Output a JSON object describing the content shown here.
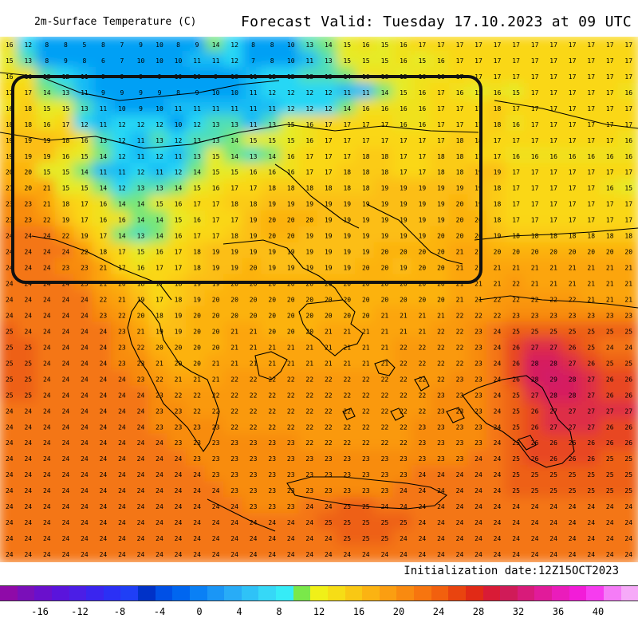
{
  "header": {
    "title_left": "2m-Surface Temperature (C)",
    "title_right": "Forecast Valid:  Tuesday 17.10.2023 at 09 UTC"
  },
  "footer": {
    "init_label": "Initialization date:12Z15OCT2023"
  },
  "colorbar": {
    "colors": [
      "#8f0aa8",
      "#7a0fb9",
      "#6a10cc",
      "#5a14dc",
      "#4b1ee6",
      "#3a25ef",
      "#2b30f5",
      "#1f3ff6",
      "#0032c8",
      "#0050e6",
      "#0066f0",
      "#0a80f5",
      "#1a96f6",
      "#28acf7",
      "#2fc2f7",
      "#36d8f7",
      "#36ecf7",
      "#7ae84a",
      "#f0f018",
      "#f6dd16",
      "#f9c814",
      "#fbb312",
      "#fb9e11",
      "#f98a10",
      "#f7750f",
      "#f2600e",
      "#e9440f",
      "#e12a16",
      "#d91b36",
      "#d01b58",
      "#d81b7a",
      "#e11b9a",
      "#ea1cbb",
      "#f21cd8",
      "#f63cef",
      "#f57cf7",
      "#f6aaf8"
    ],
    "tick_labels": [
      "-16",
      "-12",
      "-8",
      "-4",
      "0",
      "4",
      "8",
      "12",
      "16",
      "20",
      "24",
      "28",
      "32",
      "36",
      "40"
    ]
  },
  "grid_values": {
    "row_00": "16 12 8 8 5 8 7 9 10 8 9 14 12 8 8 10 13 14 15 16 15 16 17 17 17 17 17 17 17 17 17 17 17 17",
    "row_01": "15 13 8 9 8 6 7 10 10 10 11 11 12 7 8 10 11 13 15 15 15 16 15 16 17 17 17 17 17 17 17 17 17 17",
    "row_02": "16 16 13 12 11 9 9 9 9 10 10 9 10 11 12 12 13 13 14 16 16 15 16 16 17 17 17 17 17 17 17 17 17 17",
    "row_03": "17 17 14 13 11 9 9 9 9 8 9 10 10 11 12 12 12 12 11 11 14 15 16 17 16 15 16 15 17 17 17 17 17 16",
    "row_04": "16 18 15 15 13 11 10 9 10 11 11 11 11 11 11 12 12 12 14 16 16 16 16 17 17 17 18 17 17 17 17 17 17 17",
    "row_05": "18 18 16 17 12 11 12 12 12 10 12 13 13 11 13 15 16 17 17 17 17 16 16 17 17 17 18 16 17 17 17 17 17 17",
    "row_06": "19 19 19 18 16 13 12 11 13 12 13 13 14 15 15 15 16 17 17 17 17 17 17 17 18 18 17 17 17 17 17 17 17 16",
    "row_07": "19 19 19 16 15 14 12 11 12 11 13 15 14 13 14 16 17 17 17 18 18 17 17 18 18 17 17 16 16 16 16 16 16 16",
    "row_08": "20 20 15 15 14 11 11 12 11 12 14 15 15 16 16 16 17 17 18 18 18 17 17 18 18 19 19 17 17 17 17 17 17 17",
    "row_09": "21 20 21 15 15 14 12 13 13 14 15 16 17 17 18 18 18 18 18 18 19 19 19 19 19 19 18 17 17 17 17 17 16 15",
    "row_10": "23 23 21 18 17 16 14 14 15 16 17 17 18 18 19 19 19 19 19 19 19 19 19 19 20 19 18 17 17 17 17 17 17 17",
    "row_11": "23 23 22 19 17 16 16 14 14 15 16 17 17 19 20 20 20 19 19 19 19 19 19 19 20 20 18 17 17 17 17 17 17 17",
    "row_12": "24 24 24 22 19 17 14 13 14 16 17 17 18 19 20 20 19 19 19 19 19 19 19 20 20 20 19 18 18 18 18 18 18 18",
    "row_13": "24 24 24 24 22 18 17 15 16 17 18 19 19 19 19 19 19 19 19 19 20 20 20 20 21 21 20 20 20 20 20 20 20 20",
    "row_14": "24 24 24 23 23 21 17 16 17 17 18 19 19 20 19 19 19 19 19 20 20 19 20 20 21 21 21 21 21 21 21 21 21 21",
    "row_15": "24 24 24 24 23 21 20 18 17 18 19 19 20 20 20 20 20 20 20 20 20 20 20 20 21 21 21 22 21 21 21 21 21 21",
    "row_16": "24 24 24 24 24 22 21 19 17 18 19 20 20 20 20 20 20 20 20 20 20 20 20 20 21 21 22 22 22 22 22 21 21 21",
    "row_17": "24 24 24 24 24 23 22 20 18 19 20 20 20 20 20 20 20 20 20 20 21 21 21 21 22 22 22 23 23 23 23 23 23 23",
    "row_18": "25 24 24 24 24 24 23 21 19 19 20 20 21 21 20 20 20 21 21 21 21 21 21 22 22 23 24 25 25 25 25 25 25 25",
    "row_19": "25 25 24 24 24 24 23 22 20 20 20 20 21 21 21 21 21 21 21 21 21 22 22 22 22 23 24 26 27 27 26 25 24 24",
    "row_20": "25 25 24 24 24 24 23 23 21 20 20 21 21 21 21 21 21 21 21 21 21 22 22 22 22 23 24 26 28 28 27 26 25 25",
    "row_21": "25 25 24 24 24 24 24 23 22 21 21 21 22 22 22 22 22 22 22 22 22 22 22 22 23 23 24 26 28 29 28 27 26 26",
    "row_22": "25 25 24 24 24 24 24 24 23 22 22 22 22 22 22 22 22 22 22 22 22 22 22 23 23 23 24 25 27 28 28 27 26 26",
    "row_23": "24 24 24 24 24 24 24 24 23 23 22 22 22 22 22 22 22 22 22 22 22 22 22 23 23 23 24 25 26 27 27 27 27 27",
    "row_24": "24 24 24 24 24 24 24 24 23 23 23 23 22 22 22 22 22 22 22 22 22 22 23 23 23 23 24 25 26 27 27 27 26 26",
    "row_25": "24 24 24 24 24 24 24 24 24 23 23 23 23 23 23 23 22 22 22 22 22 22 23 23 23 23 24 25 26 26 26 26 26 26",
    "row_26": "24 24 24 24 24 24 24 24 24 24 23 23 23 23 23 23 23 23 23 23 23 23 23 23 23 24 24 25 26 26 26 26 25 25",
    "row_27": "24 24 24 24 24 24 24 24 24 24 24 23 23 23 23 23 23 23 23 23 23 23 24 24 24 24 24 25 25 25 25 25 25 25",
    "row_28": "24 24 24 24 24 24 24 24 24 24 24 24 23 23 23 23 23 23 23 23 23 24 24 24 24 24 24 25 25 25 25 25 25 25",
    "row_29": "24 24 24 24 24 24 24 24 24 24 24 24 24 23 23 23 24 24 25 25 24 24 24 24 24 24 24 24 24 24 24 24 24 24",
    "row_30": "24 24 24 24 24 24 24 24 24 24 24 24 24 24 24 24 24 25 25 25 25 25 24 24 24 24 24 24 24 24 24 24 24 24",
    "row_31": "24 24 24 24 24 24 24 24 24 24 24 24 24 24 24 24 24 24 25 25 25 24 24 24 24 24 24 24 24 24 24 24 24 24",
    "row_32": "24 24 24 24 24 24 24 24 24 24 24 24 24 24 24 24 24 24 24 24 24 24 24 24 24 24 24 24 24 24 24 24 24 24"
  }
}
